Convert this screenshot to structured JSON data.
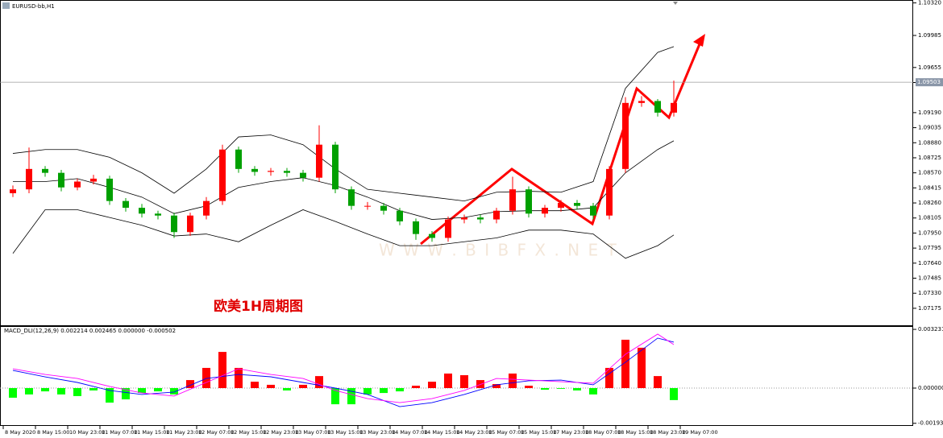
{
  "chart_data": [
    {
      "type": "candlestick",
      "symbol": "EURUSD-bb,H1",
      "annotation": "欧美1H周期图",
      "watermark": "W W W . B I B F X . N E T",
      "xtick_labels": [
        "8 May 2020",
        "8 May 15:00",
        "10 May 23:00",
        "11 May 07:00",
        "11 May 15:00",
        "11 May 23:00",
        "12 May 07:00",
        "12 May 15:00",
        "12 May 23:00",
        "13 May 07:00",
        "13 May 15:00",
        "13 May 23:00",
        "14 May 07:00",
        "14 May 15:00",
        "14 May 23:00",
        "15 May 07:00",
        "15 May 15:00",
        "17 May 23:00",
        "18 May 07:00",
        "18 May 15:00",
        "18 May 23:00",
        "19 May 07:00"
      ],
      "open": [
        1.0836,
        1.084,
        1.0861,
        1.0857,
        1.0842,
        1.0848,
        1.0851,
        1.0828,
        1.0821,
        1.0815,
        1.0813,
        1.0796,
        1.0813,
        1.0828,
        1.0881,
        1.0861,
        1.0858,
        1.0859,
        1.0857,
        1.0852,
        1.0886,
        1.084,
        1.0823,
        1.0823,
        1.0818,
        1.0807,
        1.0794,
        1.079,
        1.0809,
        1.0811,
        1.0809,
        1.0818,
        1.084,
        1.0815,
        1.0821,
        1.0826,
        1.0823,
        1.0813,
        1.0861,
        1.0929,
        1.0931,
        1.0919
      ],
      "high": [
        1.0844,
        1.0883,
        1.0864,
        1.086,
        1.0851,
        1.0855,
        1.0854,
        1.0831,
        1.0825,
        1.0818,
        1.0816,
        1.0816,
        1.0832,
        1.0886,
        1.0884,
        1.0864,
        1.0862,
        1.0862,
        1.086,
        1.0906,
        1.0889,
        1.0843,
        1.0827,
        1.0826,
        1.0821,
        1.081,
        1.0797,
        1.0812,
        1.0814,
        1.0814,
        1.0821,
        1.0853,
        1.0843,
        1.0824,
        1.0829,
        1.0829,
        1.0826,
        1.0864,
        1.0935,
        1.0936,
        1.0933,
        1.0952
      ],
      "low": [
        1.0832,
        1.0836,
        1.0853,
        1.0838,
        1.0839,
        1.0845,
        1.0824,
        1.0817,
        1.0811,
        1.0809,
        1.079,
        1.0792,
        1.0809,
        1.0824,
        1.0857,
        1.0854,
        1.0854,
        1.0853,
        1.0848,
        1.0848,
        1.0836,
        1.0819,
        1.0819,
        1.0814,
        1.0803,
        1.0788,
        1.0786,
        1.0786,
        1.0805,
        1.0805,
        1.0805,
        1.0814,
        1.0811,
        1.0811,
        1.0817,
        1.0819,
        1.0809,
        1.0809,
        1.0857,
        1.0925,
        1.0915,
        1.0915
      ],
      "close": [
        1.084,
        1.0861,
        1.0857,
        1.0842,
        1.0848,
        1.0851,
        1.0828,
        1.0821,
        1.0815,
        1.0813,
        1.0796,
        1.0813,
        1.0828,
        1.0881,
        1.0861,
        1.0858,
        1.0859,
        1.0857,
        1.0852,
        1.0886,
        1.084,
        1.0823,
        1.0823,
        1.0818,
        1.0807,
        1.0794,
        1.079,
        1.0809,
        1.0811,
        1.0809,
        1.0818,
        1.084,
        1.0815,
        1.0821,
        1.0826,
        1.0823,
        1.0813,
        1.0861,
        1.0929,
        1.0931,
        1.0919,
        1.0929
      ],
      "up_color": "#ff0000",
      "down_color": "#00a000",
      "bands": {
        "x": [
          0,
          2,
          4,
          6,
          8,
          10,
          12,
          14,
          16,
          18,
          20,
          22,
          24,
          26,
          28,
          30,
          32,
          34,
          36,
          38,
          40,
          41
        ],
        "color": "#000000",
        "upper": [
          1.0877,
          1.0881,
          1.0881,
          1.0873,
          1.0857,
          1.0836,
          1.0861,
          1.0894,
          1.0896,
          1.0886,
          1.0861,
          1.084,
          1.0836,
          1.0832,
          1.0828,
          1.0837,
          1.0838,
          1.0837,
          1.0848,
          1.0944,
          1.0981,
          1.0987
        ],
        "middle": [
          1.0848,
          1.0848,
          1.0851,
          1.0842,
          1.0832,
          1.0815,
          1.0823,
          1.0842,
          1.0848,
          1.0852,
          1.0844,
          1.0832,
          1.0818,
          1.0809,
          1.0811,
          1.0817,
          1.0818,
          1.0818,
          1.0821,
          1.0857,
          1.0881,
          1.089
        ],
        "lower": [
          1.0774,
          1.0819,
          1.0819,
          1.0811,
          1.0803,
          1.0792,
          1.0794,
          1.0786,
          1.0803,
          1.0819,
          1.0807,
          1.0794,
          1.0782,
          1.0782,
          1.0786,
          1.079,
          1.0798,
          1.0798,
          1.0794,
          1.0769,
          1.0782,
          1.0793
        ]
      },
      "current_price": {
        "value": 1.09503,
        "label": "1.09503"
      },
      "ylim": [
        1.07,
        1.1035
      ],
      "yticks": [
        {
          "value": 1.1032,
          "label": "1.10320"
        },
        {
          "value": 1.09985,
          "label": "1.09985"
        },
        {
          "value": 1.09655,
          "label": "1.09655"
        },
        {
          "value": 1.095,
          "label": "1.09500"
        },
        {
          "value": 1.0919,
          "label": "1.09190"
        },
        {
          "value": 1.09035,
          "label": "1.09035"
        },
        {
          "value": 1.0888,
          "label": "1.08880"
        },
        {
          "value": 1.08725,
          "label": "1.08725"
        },
        {
          "value": 1.0857,
          "label": "1.08570"
        },
        {
          "value": 1.08415,
          "label": "1.08415"
        },
        {
          "value": 1.0826,
          "label": "1.08260"
        },
        {
          "value": 1.08105,
          "label": "1.08105"
        },
        {
          "value": 1.0795,
          "label": "1.07950"
        },
        {
          "value": 1.07795,
          "label": "1.07795"
        },
        {
          "value": 1.0764,
          "label": "1.07640"
        },
        {
          "value": 1.07485,
          "label": "1.07485"
        },
        {
          "value": 1.0733,
          "label": "1.07330"
        },
        {
          "value": 1.07175,
          "label": "1.07175"
        }
      ]
    },
    {
      "type": "bar",
      "title": "MACD_DLI(12,26,9) 0.002214 0.002465 0.000000 -0.000502",
      "values": [
        -0.00053,
        -0.00035,
        -0.00018,
        -0.00035,
        -0.00044,
        -0.00013,
        -0.0008,
        -0.00062,
        -0.00027,
        -0.00018,
        -0.00035,
        0.00044,
        0.00111,
        0.00199,
        0.00111,
        0.00035,
        0.00018,
        -0.00013,
        0.00018,
        0.00066,
        -0.00089,
        -0.00089,
        -0.00035,
        -0.00027,
        -0.00018,
        0.00013,
        0.00035,
        0.0008,
        0.00071,
        0.00044,
        0.00022,
        0.0008,
        0.00013,
        -9e-05,
        -4e-05,
        -0.00013,
        -0.00035,
        0.00111,
        0.00266,
        0.00222,
        0.00066,
        -0.00066
      ],
      "pos_color": "#ff0000",
      "neg_color": "#00ff00",
      "lines": {
        "x": [
          0,
          2,
          4,
          6,
          8,
          10,
          12,
          14,
          16,
          18,
          20,
          22,
          24,
          26,
          28,
          30,
          32,
          34,
          36,
          38,
          40,
          41
        ],
        "main_color": "#0000ff",
        "signal_color": "#ff00ff",
        "main": [
          0.00097,
          0.00062,
          0.00031,
          -0.00013,
          -0.00035,
          -0.00022,
          0.00053,
          0.00075,
          0.00062,
          0.00031,
          0,
          -0.00035,
          -0.00102,
          -0.0008,
          -0.00035,
          0.00018,
          0.0004,
          0.00044,
          0.00018,
          0.00142,
          0.00275,
          0.00253
        ],
        "signal": [
          0.00106,
          0.00075,
          0.00053,
          9e-05,
          -0.00027,
          -0.00044,
          0.00031,
          0.00106,
          0.00075,
          0.00053,
          -0.00013,
          -0.00058,
          -0.0008,
          -0.00058,
          -0.00013,
          0.00053,
          0.00044,
          0.00035,
          0.00027,
          0.00186,
          0.00297,
          0.00239
        ]
      },
      "ylim": [
        -0.002038,
        0.003367
      ],
      "yticks": [
        {
          "value": 0.003231,
          "label": "0.003231"
        },
        {
          "value": 0,
          "label": "0.000000"
        },
        {
          "value": -0.001938,
          "label": "-0.001938"
        }
      ]
    }
  ]
}
